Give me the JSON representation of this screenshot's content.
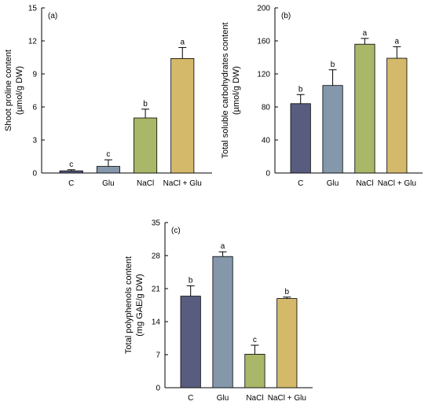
{
  "colors": {
    "C": "#585d80",
    "Glu": "#8497ab",
    "NaCl": "#a8b868",
    "NaCl + Glu": "#d4b96a"
  },
  "chart_data": [
    {
      "type": "bar",
      "panel": "(a)",
      "categories": [
        "C",
        "Glu",
        "NaCl",
        "NaCl + Glu"
      ],
      "values": [
        0.2,
        0.6,
        5.0,
        10.4
      ],
      "errors": [
        0.1,
        0.6,
        0.8,
        1.0
      ],
      "letters": [
        "c",
        "c",
        "b",
        "a"
      ],
      "ylabel": [
        "Shoot proline content",
        "(µmol/g DW)"
      ],
      "ylim": [
        0,
        15
      ],
      "yticks": [
        0,
        3,
        6,
        9,
        12,
        15
      ]
    },
    {
      "type": "bar",
      "panel": "(b)",
      "categories": [
        "C",
        "Glu",
        "NaCl",
        "NaCl + Glu"
      ],
      "values": [
        84,
        106,
        156,
        139
      ],
      "errors": [
        11,
        19,
        7,
        14
      ],
      "letters": [
        "b",
        "b",
        "a",
        "a"
      ],
      "ylabel": [
        "Total soluble carbohydrates content",
        "(µmol/g DW)"
      ],
      "ylim": [
        0,
        200
      ],
      "yticks": [
        0,
        40,
        80,
        120,
        160,
        200
      ]
    },
    {
      "type": "bar",
      "panel": "(c)",
      "categories": [
        "C",
        "Glu",
        "NaCl",
        "NaCl + Glu"
      ],
      "values": [
        19.4,
        27.8,
        7.1,
        18.9
      ],
      "errors": [
        2.2,
        1.0,
        1.9,
        0.3
      ],
      "letters": [
        "b",
        "a",
        "c",
        "b"
      ],
      "ylabel": [
        "Total polyphenols content",
        "(mg GAE/g DW)"
      ],
      "ylim": [
        0,
        35
      ],
      "yticks": [
        0,
        7,
        14,
        21,
        28,
        35
      ]
    }
  ]
}
